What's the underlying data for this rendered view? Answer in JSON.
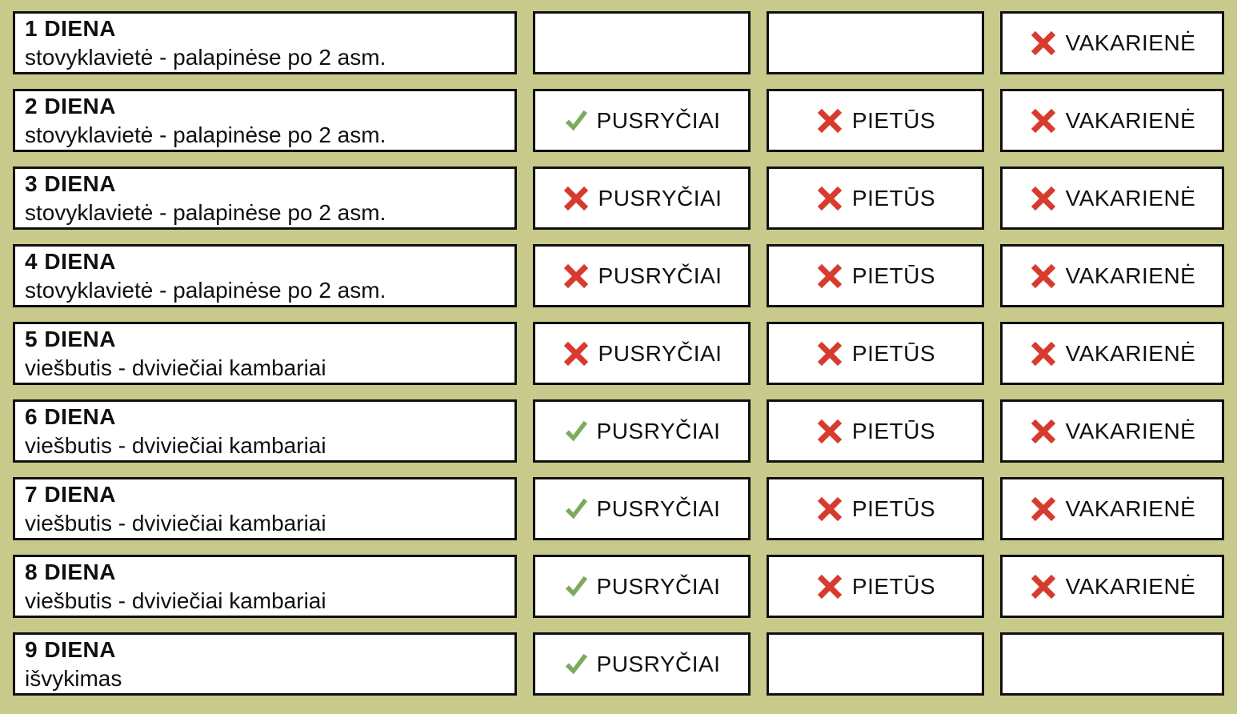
{
  "colors": {
    "background": "#c8ca8b",
    "box_background": "#ffffff",
    "border": "#101010",
    "text": "#101010",
    "check": "#7cab5e",
    "cross": "#d63b2e"
  },
  "meal_labels": {
    "breakfast": "PUSRYČIAI",
    "lunch": "PIETŪS",
    "dinner": "VAKARIENĖ"
  },
  "icons": {
    "check": "check-icon",
    "cross": "cross-icon"
  },
  "days": [
    {
      "title": "1 DIENA",
      "subtitle": "stovyklavietė - palapinėse po 2 asm.",
      "breakfast": "none",
      "lunch": "none",
      "dinner": "cross"
    },
    {
      "title": "2 DIENA",
      "subtitle": "stovyklavietė - palapinėse po 2 asm.",
      "breakfast": "check",
      "lunch": "cross",
      "dinner": "cross"
    },
    {
      "title": "3 DIENA",
      "subtitle": "stovyklavietė - palapinėse po 2 asm.",
      "breakfast": "cross",
      "lunch": "cross",
      "dinner": "cross"
    },
    {
      "title": "4 DIENA",
      "subtitle": "stovyklavietė - palapinėse po 2 asm.",
      "breakfast": "cross",
      "lunch": "cross",
      "dinner": "cross"
    },
    {
      "title": "5 DIENA",
      "subtitle": "viešbutis - dviviečiai kambariai",
      "breakfast": "cross",
      "lunch": "cross",
      "dinner": "cross"
    },
    {
      "title": "6 DIENA",
      "subtitle": "viešbutis - dviviečiai kambariai",
      "breakfast": "check",
      "lunch": "cross",
      "dinner": "cross"
    },
    {
      "title": "7 DIENA",
      "subtitle": "viešbutis - dviviečiai kambariai",
      "breakfast": "check",
      "lunch": "cross",
      "dinner": "cross"
    },
    {
      "title": "8 DIENA",
      "subtitle": "viešbutis - dviviečiai kambariai",
      "breakfast": "check",
      "lunch": "cross",
      "dinner": "cross"
    },
    {
      "title": "9 DIENA",
      "subtitle": "išvykimas",
      "breakfast": "check",
      "lunch": "none",
      "dinner": "none"
    }
  ]
}
